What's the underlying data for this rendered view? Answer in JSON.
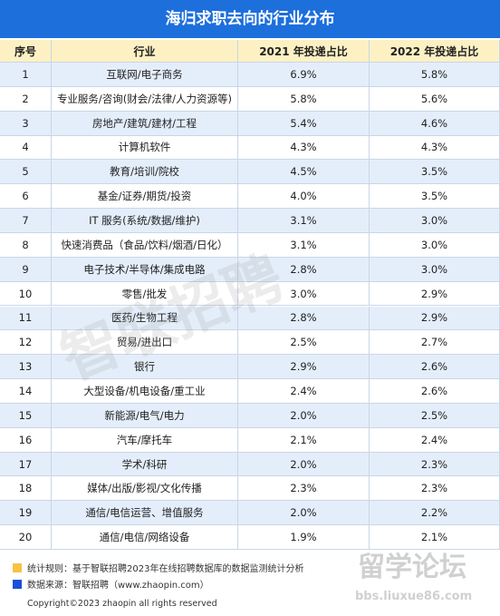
{
  "header": {
    "title": "海归求职去向的行业分布"
  },
  "table": {
    "columns": [
      "序号",
      "行业",
      "2021 年投递占比",
      "2022 年投递占比"
    ],
    "rows": [
      [
        "1",
        "互联网/电子商务",
        "6.9%",
        "5.8%"
      ],
      [
        "2",
        "专业服务/咨询(财会/法律/人力资源等)",
        "5.8%",
        "5.6%"
      ],
      [
        "3",
        "房地产/建筑/建材/工程",
        "5.4%",
        "4.6%"
      ],
      [
        "4",
        "计算机软件",
        "4.3%",
        "4.3%"
      ],
      [
        "5",
        "教育/培训/院校",
        "4.5%",
        "3.5%"
      ],
      [
        "6",
        "基金/证券/期货/投资",
        "4.0%",
        "3.5%"
      ],
      [
        "7",
        "IT 服务(系统/数据/维护)",
        "3.1%",
        "3.0%"
      ],
      [
        "8",
        "快速消费品（食品/饮料/烟酒/日化）",
        "3.1%",
        "3.0%"
      ],
      [
        "9",
        "电子技术/半导体/集成电路",
        "2.8%",
        "3.0%"
      ],
      [
        "10",
        "零售/批发",
        "3.0%",
        "2.9%"
      ],
      [
        "11",
        "医药/生物工程",
        "2.8%",
        "2.9%"
      ],
      [
        "12",
        "贸易/进出口",
        "2.5%",
        "2.7%"
      ],
      [
        "13",
        "银行",
        "2.9%",
        "2.6%"
      ],
      [
        "14",
        "大型设备/机电设备/重工业",
        "2.4%",
        "2.6%"
      ],
      [
        "15",
        "新能源/电气/电力",
        "2.0%",
        "2.5%"
      ],
      [
        "16",
        "汽车/摩托车",
        "2.1%",
        "2.4%"
      ],
      [
        "17",
        "学术/科研",
        "2.0%",
        "2.3%"
      ],
      [
        "18",
        "媒体/出版/影视/文化传播",
        "2.3%",
        "2.3%"
      ],
      [
        "19",
        "通信/电信运营、增值服务",
        "2.0%",
        "2.2%"
      ],
      [
        "20",
        "通信/电信/网络设备",
        "1.9%",
        "2.1%"
      ]
    ]
  },
  "notes": [
    "统计规则：基于智联招聘2023年在线招聘数据库的数据监测统计分析",
    "数据来源：智联招聘（www.zhaopin.com）"
  ],
  "copyright": "Copyright©2023 zhaopin all rights reserved",
  "watermarks": [
    "智联招聘",
    "留学论坛",
    "bbs.liuxue86.com"
  ]
}
